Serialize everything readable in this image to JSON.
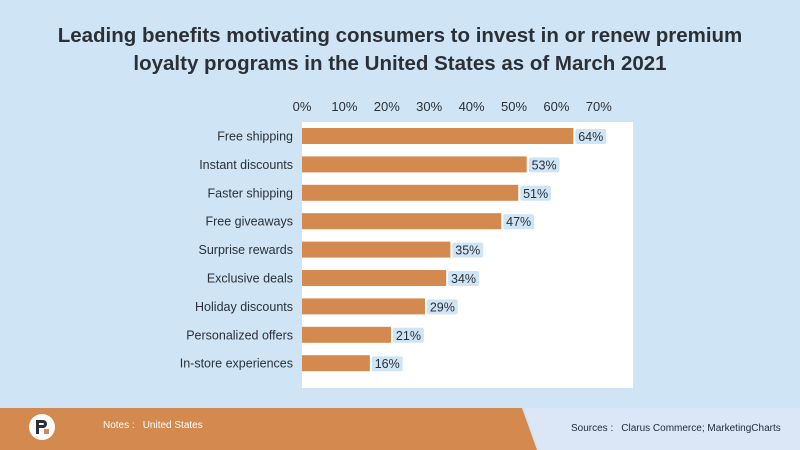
{
  "title": {
    "line1": "Leading benefits motivating consumers to invest in or renew premium",
    "line2": "loyalty programs in the United States as of March 2021"
  },
  "chart_data": {
    "type": "bar",
    "orientation": "horizontal",
    "categories": [
      "Free shipping",
      "Instant discounts",
      "Faster shipping",
      "Free giveaways",
      "Surprise rewards",
      "Exclusive deals",
      "Holiday discounts",
      "Personalized offers",
      "In-store experiences"
    ],
    "values": [
      64,
      53,
      51,
      47,
      35,
      34,
      29,
      21,
      16
    ],
    "value_suffix": "%",
    "xlim": [
      0,
      70
    ],
    "x_ticks": [
      "0%",
      "10%",
      "20%",
      "30%",
      "40%",
      "50%",
      "60%",
      "70%"
    ],
    "x_axis_position": "top",
    "grid": false,
    "bar_color": "#d4894e",
    "label_bg_color": "#cfe5f5"
  },
  "footer": {
    "notes_label": "Notes :",
    "notes_value": "United States",
    "sources_label": "Sources :",
    "sources_value": "Clarus Commerce; MarketingCharts"
  },
  "colors": {
    "background": "#cfe5f5",
    "footer_orange": "#d4894e",
    "footer_blue": "#dbe7f7",
    "title": "#2b3036"
  }
}
